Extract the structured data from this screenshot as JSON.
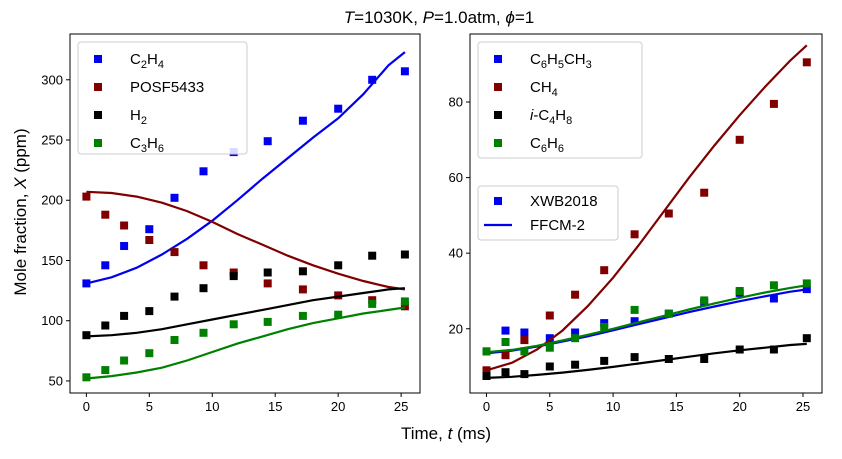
{
  "figure": {
    "title_parts": {
      "t": "T",
      "t_rest": "=1030K, ",
      "p": "P",
      "p_rest": "=1.0atm, ",
      "phi": "ϕ",
      "phi_rest": "=1"
    },
    "shared_xlabel": {
      "main": "Time, ",
      "var": "t",
      "unit": " (ms)"
    }
  },
  "chart_data": [
    {
      "type": "scatter+line",
      "panel": "left",
      "title": "T=1030K, P=1.0atm, ϕ=1",
      "xlabel": "Time, t (ms)",
      "ylabel": "Mole fraction, X (ppm)",
      "xlim": [
        -1.3,
        26.5
      ],
      "ylim": [
        40,
        338
      ],
      "xticks": [
        0,
        5,
        10,
        15,
        20,
        25
      ],
      "yticks": [
        50,
        100,
        150,
        200,
        250,
        300
      ],
      "ylabel_parts": {
        "main": "Mole fraction, ",
        "var": "X",
        "unit": " (ppm)"
      },
      "legend_position": "top-left",
      "series": [
        {
          "name": "C2H4",
          "label": {
            "base": "C",
            "s1": "2",
            "mid": "H",
            "s2": "4"
          },
          "color": "#0000ee",
          "points": {
            "x": [
              0,
              1.5,
              3,
              5,
              7,
              9.3,
              11.7,
              14.4,
              17.2,
              20,
              22.7,
              25.3
            ],
            "y": [
              131,
              146,
              162,
              176,
              202,
              224,
              240,
              249,
              266,
              276,
              300,
              307
            ]
          },
          "model": {
            "x": [
              0,
              2,
              4,
              6,
              8,
              10,
              12,
              14,
              16,
              18,
              20,
              22,
              24,
              25.3
            ],
            "y": [
              131,
              136,
              144,
              155,
              168,
              183,
              200,
              218,
              235,
              252,
              268,
              288,
              312,
              323
            ]
          }
        },
        {
          "name": "POSF5433",
          "label": {
            "base": "POSF5433"
          },
          "color": "#800000",
          "points": {
            "x": [
              0,
              1.5,
              3,
              5,
              7,
              9.3,
              11.7,
              14.4,
              17.2,
              20,
              22.7,
              25.3
            ],
            "y": [
              203,
              188,
              179,
              167,
              157,
              146,
              140,
              131,
              126,
              121,
              117,
              112
            ]
          },
          "model": {
            "x": [
              0,
              2,
              4,
              6,
              8,
              10,
              12,
              14,
              16,
              18,
              20,
              22,
              24,
              25.3
            ],
            "y": [
              207,
              206,
              203,
              198,
              191,
              182,
              172,
              163,
              154,
              146,
              139,
              133,
              128,
              126
            ]
          }
        },
        {
          "name": "H2",
          "label": {
            "base": "H",
            "s1": "2"
          },
          "color": "#000000",
          "points": {
            "x": [
              0,
              1.5,
              3,
              5,
              7,
              9.3,
              11.7,
              14.4,
              17.2,
              20,
              22.7,
              25.3
            ],
            "y": [
              88,
              96,
              104,
              108,
              120,
              127,
              137,
              140,
              141,
              146,
              154,
              155
            ]
          },
          "model": {
            "x": [
              0,
              2,
              4,
              6,
              8,
              10,
              12,
              14,
              16,
              18,
              20,
              22,
              24,
              25.3
            ],
            "y": [
              87,
              88,
              90,
              93,
              97,
              101,
              105,
              109,
              113,
              117,
              120,
              123,
              126,
              127
            ]
          }
        },
        {
          "name": "C3H6",
          "label": {
            "base": "C",
            "s1": "3",
            "mid": "H",
            "s2": "6"
          },
          "color": "#008000",
          "points": {
            "x": [
              0,
              1.5,
              3,
              5,
              7,
              9.3,
              11.7,
              14.4,
              17.2,
              20,
              22.7,
              25.3
            ],
            "y": [
              53,
              59,
              67,
              73,
              84,
              90,
              97,
              99,
              104,
              105,
              114,
              116
            ]
          },
          "model": {
            "x": [
              0,
              2,
              4,
              6,
              8,
              10,
              12,
              14,
              16,
              18,
              20,
              22,
              24,
              25.3
            ],
            "y": [
              52,
              54,
              57,
              61,
              67,
              74,
              81,
              87,
              93,
              98,
              102,
              106,
              109,
              111
            ]
          }
        }
      ]
    },
    {
      "type": "scatter+line",
      "panel": "right",
      "xlabel": "Time, t (ms)",
      "ylabel": "",
      "xlim": [
        -1.3,
        26.5
      ],
      "ylim": [
        3,
        98
      ],
      "xticks": [
        0,
        5,
        10,
        15,
        20,
        25
      ],
      "yticks": [
        20,
        40,
        60,
        80
      ],
      "legend_position": "top-left",
      "series": [
        {
          "name": "C6H5CH3",
          "label": {
            "base": "C",
            "s1": "6",
            "mid": "H",
            "s2": "5",
            "mid2": "CH",
            "s3": "3"
          },
          "color": "#0000ee",
          "points": {
            "x": [
              0,
              1.5,
              3,
              5,
              7,
              9.3,
              11.7,
              14.4,
              17.2,
              20,
              22.7,
              25.3
            ],
            "y": [
              14,
              19.5,
              19,
              17.5,
              19,
              21.5,
              22,
              24,
              27,
              29.5,
              28,
              30.5
            ]
          },
          "model": {
            "x": [
              0,
              2,
              4,
              6,
              8,
              10,
              12,
              14,
              16,
              18,
              20,
              22,
              24,
              25.3
            ],
            "y": [
              13.5,
              14.2,
              15.3,
              16.6,
              18,
              19.6,
              21.2,
              22.8,
              24.4,
              25.9,
              27.3,
              28.6,
              29.8,
              30.4
            ]
          }
        },
        {
          "name": "CH4",
          "label": {
            "base": "CH",
            "s1": "4"
          },
          "color": "#800000",
          "points": {
            "x": [
              0,
              1.5,
              3,
              5,
              7,
              9.3,
              11.7,
              14.4,
              17.2,
              20,
              22.7,
              25.3
            ],
            "y": [
              9,
              13,
              17,
              23.5,
              29,
              35.5,
              45,
              50.5,
              56,
              70,
              79.5,
              90.5
            ]
          },
          "model": {
            "x": [
              0,
              2,
              4,
              6,
              8,
              10,
              12,
              14,
              16,
              18,
              20,
              22,
              24,
              25.3
            ],
            "y": [
              9,
              11,
              14.5,
              19.5,
              26,
              33.5,
              42,
              51,
              60,
              68.5,
              76.5,
              84,
              91,
              95
            ]
          }
        },
        {
          "name": "i-C4H8",
          "label": {
            "prefix": "i",
            "base": "-C",
            "s1": "4",
            "mid": "H",
            "s2": "8"
          },
          "color": "#000000",
          "points": {
            "x": [
              0,
              1.5,
              3,
              5,
              7,
              9.3,
              11.7,
              14.4,
              17.2,
              20,
              22.7,
              25.3
            ],
            "y": [
              7.5,
              8.5,
              8,
              10,
              10.5,
              11.5,
              12.5,
              12,
              12,
              14.5,
              14.5,
              17.5
            ]
          },
          "model": {
            "x": [
              0,
              2,
              4,
              6,
              8,
              10,
              12,
              14,
              16,
              18,
              20,
              22,
              24,
              25.3
            ],
            "y": [
              7,
              7.3,
              7.8,
              8.4,
              9.1,
              9.9,
              10.8,
              11.7,
              12.6,
              13.5,
              14.3,
              15,
              15.7,
              16
            ]
          }
        },
        {
          "name": "C6H6",
          "label": {
            "base": "C",
            "s1": "6",
            "mid": "H",
            "s2": "6"
          },
          "color": "#008000",
          "points": {
            "x": [
              0,
              1.5,
              3,
              5,
              7,
              9.3,
              11.7,
              14.4,
              17.2,
              20,
              22.7,
              25.3
            ],
            "y": [
              14,
              16.5,
              14,
              15,
              17.5,
              20.5,
              25,
              24,
              27.5,
              30,
              31.5,
              32
            ]
          },
          "model": {
            "x": [
              0,
              2,
              4,
              6,
              8,
              10,
              12,
              14,
              16,
              18,
              20,
              22,
              24,
              25.3
            ],
            "y": [
              13.8,
              14.4,
              15.5,
              16.9,
              18.4,
              20,
              21.7,
              23.4,
              25.1,
              26.7,
              28.2,
              29.6,
              30.8,
              31.5
            ]
          }
        }
      ],
      "style_legend": {
        "position": "center-left",
        "entries": [
          {
            "label": "XWB2018",
            "kind": "marker",
            "color": "#0000ee"
          },
          {
            "label": "FFCM-2",
            "kind": "line",
            "color": "#0000ee"
          }
        ]
      }
    }
  ]
}
